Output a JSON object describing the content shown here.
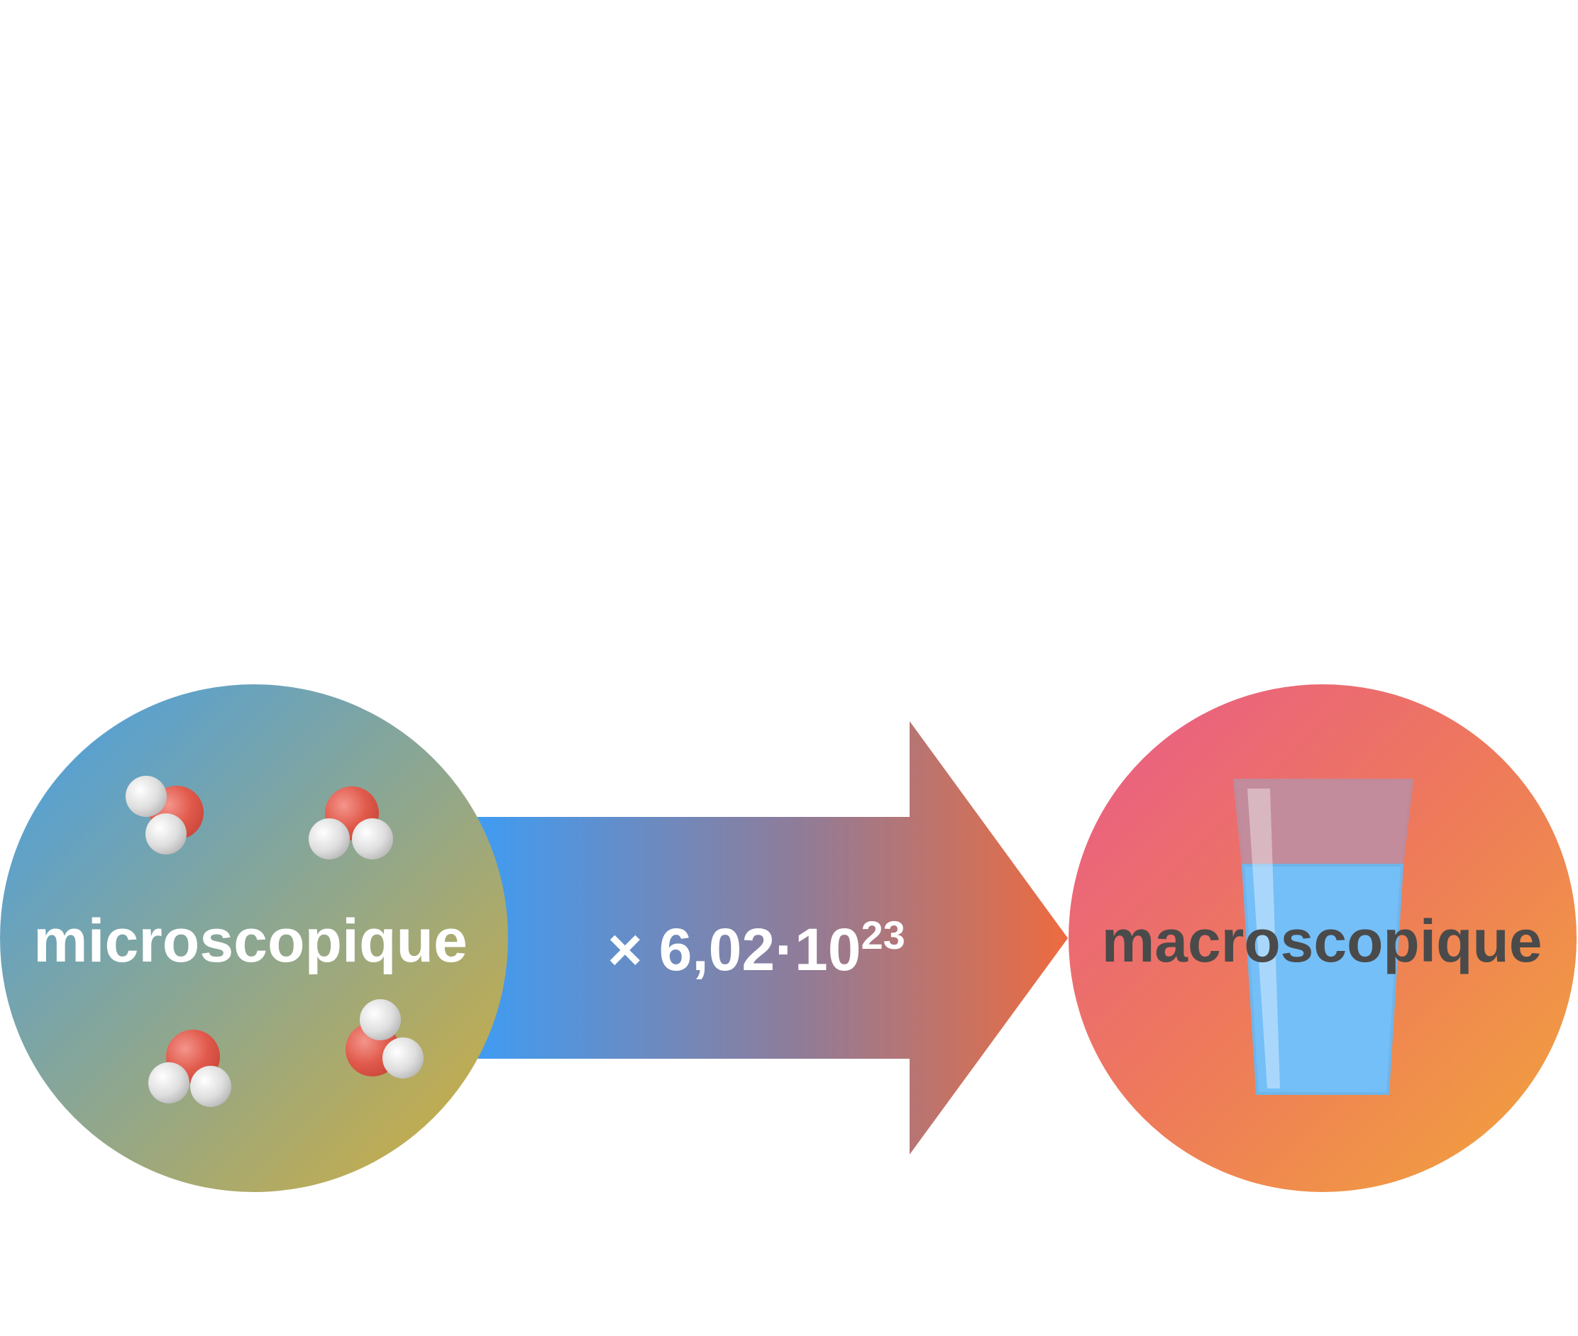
{
  "diagram": {
    "left_circle": {
      "label": "microscopique",
      "label_color": "#ffffff",
      "gradient": [
        "#469fe8",
        "#d3ae3a"
      ]
    },
    "arrow": {
      "multiplier": "× 6,02·10",
      "exponent": "23",
      "label_color": "#ffffff",
      "gradient": [
        "#3f9cf2",
        "#ed6b3f"
      ]
    },
    "right_circle": {
      "label": "macroscopique",
      "label_color": "#4a4a4a",
      "gradient": [
        "#e95a8b",
        "#f2a53a"
      ]
    },
    "molecule": {
      "oxygen_color": "#e15b4d",
      "hydrogen_color": "#d9d9d9",
      "count": 4
    },
    "glass": {
      "icon": "water-glass-icon",
      "water_color": "#74bff8",
      "glass_color": "#c28c9c"
    }
  }
}
